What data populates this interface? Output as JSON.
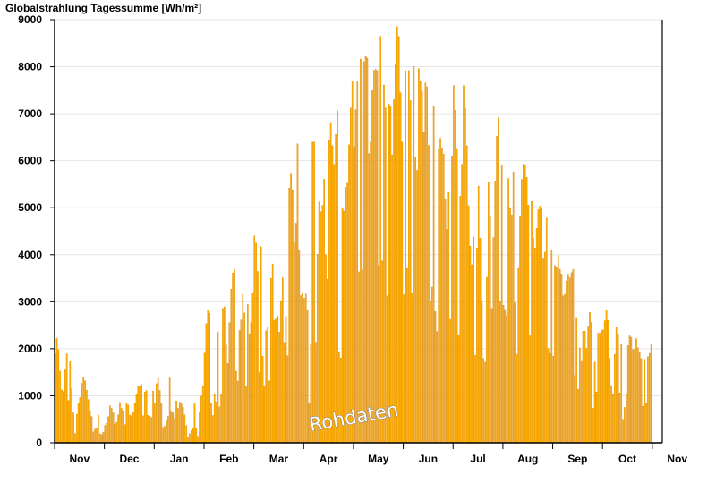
{
  "chart_data": {
    "type": "bar",
    "title": "Globalstrahlung Tagessumme [Wh/m²]",
    "xlabel": "",
    "ylabel": "",
    "ylim": [
      0,
      9000
    ],
    "yticks": [
      0,
      1000,
      2000,
      3000,
      4000,
      5000,
      6000,
      7000,
      8000,
      9000
    ],
    "x_tick_labels": [
      "Nov",
      "Dec",
      "Jan",
      "Feb",
      "Mar",
      "Apr",
      "May",
      "Jun",
      "Jul",
      "Aug",
      "Sep",
      "Oct",
      "Nov"
    ],
    "grid": "horizontal",
    "bar_color": "#ffb000",
    "bar_edge_color": "#d98200",
    "annotation": "Rohdaten",
    "month_anchors": [
      {
        "month": "Nov",
        "values": [
          1900,
          2200,
          1500,
          900,
          1600,
          2100,
          1700,
          700,
          400,
          800,
          1000,
          1400,
          1300,
          900,
          600,
          500,
          700,
          600,
          350,
          500
        ]
      },
      {
        "month": "Dec",
        "values": [
          350,
          450,
          800,
          700,
          350,
          500,
          900,
          600,
          900,
          800,
          550,
          600,
          900,
          1200,
          1200,
          1300,
          1000,
          1300,
          1250,
          1100
        ]
      },
      {
        "month": "Jan",
        "values": [
          800,
          1500,
          1100,
          700,
          800,
          1200,
          1400,
          1500,
          1100,
          700,
          900,
          800,
          500,
          200,
          500,
          700,
          900,
          300,
          800,
          1200
        ]
      },
      {
        "month": "Feb",
        "values": [
          1800,
          2700,
          2600,
          1400,
          1000,
          2600,
          1600,
          2900,
          2700,
          1500,
          2600,
          3600,
          3700,
          3000,
          2200,
          3200,
          2600,
          2800,
          2100,
          3000
        ]
      },
      {
        "month": "Mar",
        "values": [
          4400,
          3800,
          3300,
          4700,
          2500,
          2300,
          3000,
          3900,
          2400,
          2600,
          2300,
          3800,
          1700,
          3900,
          5900,
          5500,
          3800,
          6100,
          3200,
          3000
        ]
      },
      {
        "month": "Apr",
        "values": [
          2900,
          3300,
          1800,
          6400,
          6400,
          3600,
          5300,
          4600,
          5400,
          2700,
          7200,
          6400,
          5800,
          7500,
          3300,
          5000,
          4900,
          5500,
          6200,
          7700
        ]
      },
      {
        "month": "May",
        "values": [
          6300,
          7500,
          8100,
          8200,
          8100,
          8300,
          5900,
          6800,
          8100,
          7800,
          8500,
          8800,
          7300,
          6900,
          7300,
          6000,
          7800,
          8500,
          8000,
          6400
        ]
      },
      {
        "month": "Jun",
        "values": [
          7000,
          8400,
          7900,
          6900,
          7600,
          5000,
          8300,
          7200,
          6500,
          7900,
          6000,
          7400,
          7100,
          5100,
          6600,
          6300,
          5600,
          4500,
          5700,
          6100
        ]
      },
      {
        "month": "Jul",
        "values": [
          7600,
          6800,
          5000,
          5400,
          7300,
          6300,
          4900,
          3600,
          4500,
          3800,
          5800,
          2800,
          4300,
          3200,
          6300,
          2700,
          5000,
          6500,
          7100,
          5900
        ]
      },
      {
        "month": "Aug",
        "values": [
          6500,
          6200,
          5600,
          4600,
          5500,
          1200,
          4000,
          5500,
          6000,
          5800,
          4900,
          5300,
          4100,
          4200,
          5200,
          4800,
          3600,
          4800,
          4300,
          4100
        ]
      },
      {
        "month": "Sep",
        "values": [
          4100,
          3600,
          4000,
          3500,
          3100,
          3200,
          3400,
          3600,
          3700,
          2700,
          2500,
          1500,
          2600,
          1800,
          2700,
          2500,
          1300,
          2400,
          2300,
          2400
        ]
      },
      {
        "month": "Oct",
        "values": [
          2400,
          2700,
          2600,
          1300,
          1000,
          2500,
          2300,
          2400,
          900,
          2400,
          2000,
          2300,
          1900,
          2100,
          2000,
          1800,
          1700,
          1900,
          1800,
          2100
        ]
      }
    ]
  }
}
